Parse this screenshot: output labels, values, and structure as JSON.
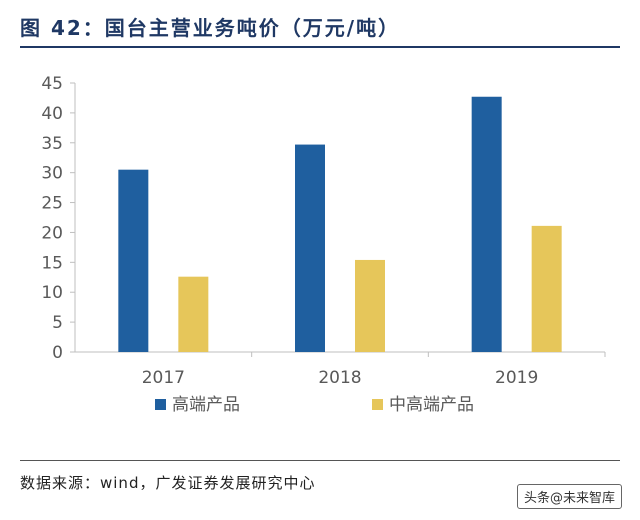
{
  "figure": {
    "title": "图 42：国台主营业务吨价（万元/吨）",
    "source": "数据来源：wind，广发证券发展研究中心",
    "watermark": "头条@未来智库"
  },
  "colors": {
    "title": "#1f3864",
    "series_high": "#1f5f9f",
    "series_mid": "#e6c65a",
    "axis": "#bfbfbf",
    "tick_text": "#595959"
  },
  "chart_data": {
    "type": "bar",
    "title": "",
    "xlabel": "",
    "ylabel": "",
    "categories": [
      "2017",
      "2018",
      "2019"
    ],
    "series": [
      {
        "name": "高端产品",
        "values": [
          30.5,
          34.7,
          42.7
        ]
      },
      {
        "name": "中高端产品",
        "values": [
          12.6,
          15.4,
          21.1
        ]
      }
    ],
    "ylim": [
      0,
      45
    ],
    "yticks": [
      0,
      5,
      10,
      15,
      20,
      25,
      30,
      35,
      40,
      45
    ],
    "grid": false,
    "legend_position": "bottom"
  }
}
